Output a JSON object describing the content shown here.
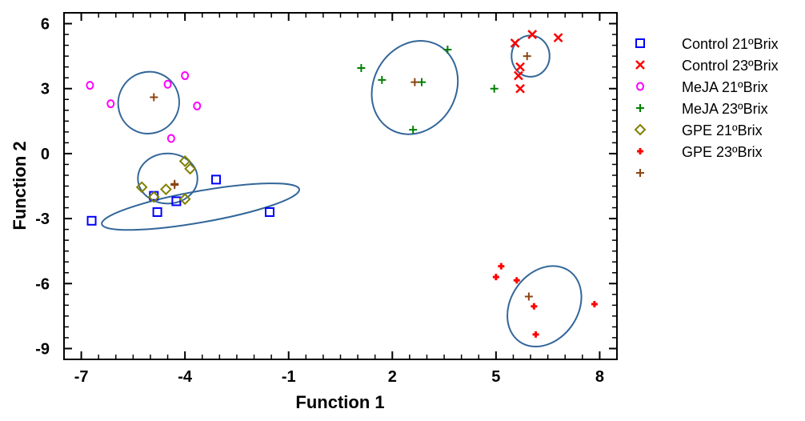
{
  "chart_data": {
    "type": "scatter",
    "title": "",
    "xlabel": "Function 1",
    "ylabel": "Function 2",
    "xlim": [
      -7.5,
      8.5
    ],
    "ylim": [
      -9.5,
      6.5
    ],
    "x_ticks": [
      -7,
      -4,
      -1,
      2,
      5,
      8
    ],
    "y_ticks": [
      6,
      3,
      0,
      -3,
      -6,
      -9
    ],
    "x_tick_labels": [
      "-7",
      "-4",
      "-1",
      "2",
      "5",
      "8"
    ],
    "y_tick_labels": [
      "6",
      "3",
      "0",
      "-3",
      "-6",
      "-9"
    ],
    "legend_position": "right",
    "series": [
      {
        "name": "Control 21ºBrix",
        "marker": "square",
        "color": "#0000ff",
        "points": [
          [
            -6.7,
            -3.1
          ],
          [
            -4.8,
            -2.7
          ],
          [
            -4.25,
            -2.2
          ],
          [
            -3.1,
            -1.2
          ],
          [
            -1.55,
            -2.7
          ],
          [
            -4.9,
            -1.95
          ]
        ]
      },
      {
        "name": "Control 23ºBrix",
        "marker": "x",
        "color": "#ff0000",
        "points": [
          [
            5.55,
            5.1
          ],
          [
            6.05,
            5.5
          ],
          [
            6.8,
            5.35
          ],
          [
            5.7,
            4.0
          ],
          [
            5.65,
            3.6
          ],
          [
            5.7,
            3.0
          ]
        ]
      },
      {
        "name": "MeJA 21ºBrix",
        "marker": "circle",
        "color": "#ff00ff",
        "points": [
          [
            -6.75,
            3.15
          ],
          [
            -6.15,
            2.3
          ],
          [
            -4.5,
            3.2
          ],
          [
            -4.0,
            3.6
          ],
          [
            -3.65,
            2.2
          ],
          [
            -4.4,
            0.7
          ]
        ]
      },
      {
        "name": "MeJA 23ºBrix",
        "marker": "plus",
        "color": "#008000",
        "points": [
          [
            1.1,
            3.95
          ],
          [
            1.7,
            3.4
          ],
          [
            2.85,
            3.3
          ],
          [
            3.6,
            4.8
          ],
          [
            4.95,
            3.0
          ],
          [
            2.6,
            1.1
          ]
        ]
      },
      {
        "name": "GPE 21ºBrix",
        "marker": "diamond",
        "color": "#808000",
        "points": [
          [
            -5.25,
            -1.55
          ],
          [
            -4.9,
            -2.0
          ],
          [
            -4.55,
            -1.65
          ],
          [
            -4.0,
            -0.35
          ],
          [
            -3.85,
            -0.7
          ],
          [
            -4.0,
            -2.1
          ]
        ]
      },
      {
        "name": "GPE 23ºBrix",
        "marker": "star",
        "color": "#ff0000",
        "points": [
          [
            5.15,
            -5.2
          ],
          [
            5.0,
            -5.7
          ],
          [
            5.6,
            -5.85
          ],
          [
            6.1,
            -7.05
          ],
          [
            6.15,
            -8.35
          ],
          [
            7.85,
            -6.95
          ]
        ]
      },
      {
        "name": "",
        "marker": "centroid",
        "color": "#8b4513",
        "points": [
          [
            -4.3,
            -1.4
          ],
          [
            5.9,
            4.5
          ],
          [
            -4.9,
            2.6
          ],
          [
            2.65,
            3.3
          ],
          [
            -4.3,
            -1.45
          ],
          [
            5.95,
            -6.6
          ]
        ]
      }
    ],
    "ellipses": [
      {
        "group": "Control 21ºBrix",
        "cx": -3.55,
        "cy": -2.45,
        "rx": 5.8,
        "ry": 1.45,
        "rot_deg": 10,
        "color": "#336699"
      },
      {
        "group": "Control 23ºBrix",
        "cx": 6.0,
        "cy": 4.5,
        "rx": 1.1,
        "ry": 1.9,
        "rot_deg": 0,
        "color": "#336699"
      },
      {
        "group": "MeJA 21ºBrix",
        "cx": -5.05,
        "cy": 2.35,
        "rx": 1.8,
        "ry": 2.8,
        "rot_deg": 60,
        "color": "#336699"
      },
      {
        "group": "MeJA 23ºBrix",
        "cx": 2.65,
        "cy": 3.05,
        "rx": 2.8,
        "ry": 3.8,
        "rot_deg": 60,
        "color": "#336699"
      },
      {
        "group": "GPE 21ºBrix",
        "cx": -4.5,
        "cy": -1.15,
        "rx": 1.45,
        "ry": 2.75,
        "rot_deg": 90,
        "color": "#336699"
      },
      {
        "group": "GPE 23ºBrix",
        "cx": 6.4,
        "cy": -7.05,
        "rx": 2.5,
        "ry": 3.1,
        "rot_deg": 55,
        "color": "#336699"
      }
    ]
  }
}
